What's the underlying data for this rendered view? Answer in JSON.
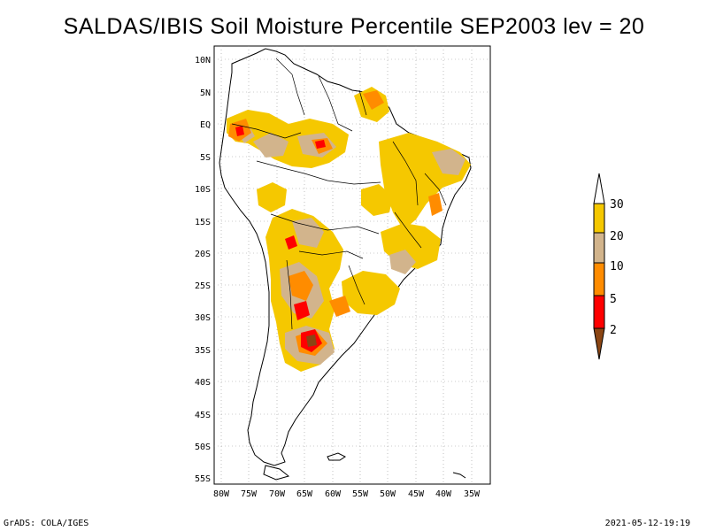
{
  "title": "SALDAS/IBIS Soil Moisture Percentile SEP2003 lev = 20",
  "footer": {
    "left": "GrADS: COLA/IGES",
    "right": "2021-05-12-19:19"
  },
  "map": {
    "lat_labels": [
      "10N",
      "5N",
      "EQ",
      "5S",
      "10S",
      "15S",
      "20S",
      "25S",
      "30S",
      "35S",
      "40S",
      "45S",
      "50S",
      "55S"
    ],
    "lon_labels": [
      "80W",
      "75W",
      "70W",
      "65W",
      "60W",
      "55W",
      "50W",
      "45W",
      "40W",
      "35W"
    ]
  },
  "legend": {
    "labels": [
      "30",
      "20",
      "10",
      "5",
      "2"
    ],
    "colors": {
      "above30": "#ffffff",
      "20to30": "#f5c800",
      "10to20": "#d2b48c",
      "5to10": "#ff8c00",
      "2to5": "#ff0000",
      "below2": "#8b4513"
    }
  }
}
